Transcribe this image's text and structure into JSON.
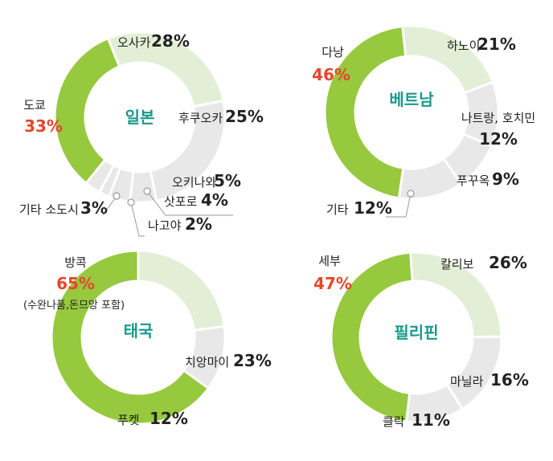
{
  "chart_data": [
    {
      "type": "pie",
      "style": "donut",
      "title": "일본",
      "slices": [
        {
          "name": "오사카",
          "value": 28,
          "label": "28%",
          "color": "#e3eed7"
        },
        {
          "name": "후쿠오카",
          "value": 25,
          "label": "25%",
          "color": "#e8e8e8"
        },
        {
          "name": "오키나와",
          "value": 5,
          "label": "5%",
          "color": "#e8e8e8"
        },
        {
          "name": "삿포로",
          "value": 4,
          "label": "4%",
          "color": "#e8e8e8"
        },
        {
          "name": "나고야",
          "value": 2,
          "label": "2%",
          "color": "#e8e8e8"
        },
        {
          "name": "기타 소도시",
          "value": 3,
          "label": "3%",
          "color": "#e8e8e8"
        },
        {
          "name": "도쿄",
          "value": 33,
          "label": "33%",
          "color": "#96c93d",
          "highlight": true
        }
      ]
    },
    {
      "type": "pie",
      "style": "donut",
      "title": "베트남",
      "slices": [
        {
          "name": "하노이",
          "value": 21,
          "label": "21%",
          "color": "#e3eed7"
        },
        {
          "name": "나트랑, 호치민",
          "value": 12,
          "label": "12%",
          "color": "#e8e8e8"
        },
        {
          "name": "푸꾸옥",
          "value": 9,
          "label": "9%",
          "color": "#e8e8e8"
        },
        {
          "name": "기타",
          "value": 12,
          "label": "12%",
          "color": "#e8e8e8"
        },
        {
          "name": "다낭",
          "value": 46,
          "label": "46%",
          "color": "#96c93d",
          "highlight": true
        }
      ]
    },
    {
      "type": "pie",
      "style": "donut",
      "title": "태국",
      "slices": [
        {
          "name": "치앙마이",
          "value": 23,
          "label": "23%",
          "color": "#e3eed7"
        },
        {
          "name": "푸켓",
          "value": 12,
          "label": "12%",
          "color": "#e8e8e8"
        },
        {
          "name": "방콕",
          "value": 65,
          "label": "65%",
          "note": "(수완나품,돈므앙 포함)",
          "color": "#96c93d",
          "highlight": true
        }
      ]
    },
    {
      "type": "pie",
      "style": "donut",
      "title": "필리핀",
      "slices": [
        {
          "name": "칼리보",
          "value": 26,
          "label": "26%",
          "color": "#e3eed7"
        },
        {
          "name": "마닐라",
          "value": 16,
          "label": "16%",
          "color": "#e8e8e8"
        },
        {
          "name": "클락",
          "value": 11,
          "label": "11%",
          "color": "#e8e8e8"
        },
        {
          "name": "세부",
          "value": 47,
          "label": "47%",
          "color": "#96c93d",
          "highlight": true
        }
      ]
    }
  ],
  "colors": {
    "title": "#1a9a8a",
    "highlight_text": "#e8452c",
    "text": "#222222",
    "leader": "#9a9a9a"
  }
}
